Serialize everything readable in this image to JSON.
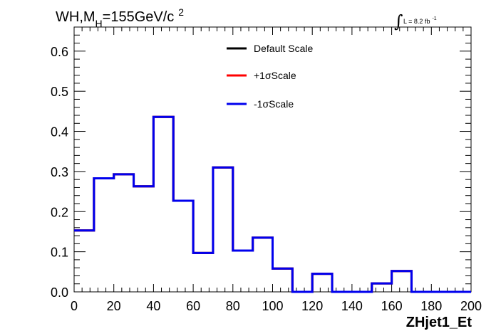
{
  "chart_data": {
    "type": "line",
    "title": {
      "main": "WH,M",
      "sub": "H",
      "rest": "=155GeV/c",
      "sup": "2"
    },
    "lumi_label": {
      "integral": "∫",
      "text": "L = 8.2 fb",
      "sup": "-1"
    },
    "xlabel": "ZHjet1_Et",
    "ylabel": "",
    "xlim": [
      0,
      200
    ],
    "ylim": [
      0,
      0.66
    ],
    "x_ticks": [
      "0",
      "20",
      "40",
      "60",
      "80",
      "100",
      "120",
      "140",
      "160",
      "180",
      "200"
    ],
    "y_ticks": [
      "0.0",
      "0.1",
      "0.2",
      "0.3",
      "0.4",
      "0.5",
      "0.6"
    ],
    "bin_edges": [
      0,
      10,
      20,
      30,
      40,
      50,
      60,
      70,
      80,
      90,
      100,
      110,
      120,
      130,
      140,
      150,
      160,
      170,
      180,
      190,
      200
    ],
    "series": [
      {
        "name": "Default Scale",
        "color": "#000000",
        "values": [
          0.153,
          0.283,
          0.293,
          0.263,
          0.436,
          0.227,
          0.097,
          0.31,
          0.103,
          0.135,
          0.058,
          0.0,
          0.045,
          0.0,
          0.0,
          0.021,
          0.052,
          0.0,
          0.0,
          0.0
        ]
      },
      {
        "name": "+1σScale",
        "color": "#ff0000",
        "values": [
          0.153,
          0.283,
          0.293,
          0.263,
          0.436,
          0.227,
          0.097,
          0.31,
          0.103,
          0.135,
          0.058,
          0.0,
          0.045,
          0.0,
          0.0,
          0.021,
          0.052,
          0.0,
          0.0,
          0.0
        ]
      },
      {
        "name": "-1σScale",
        "color": "#0000ee",
        "values": [
          0.153,
          0.283,
          0.293,
          0.263,
          0.436,
          0.227,
          0.097,
          0.31,
          0.103,
          0.135,
          0.058,
          0.0,
          0.045,
          0.0,
          0.0,
          0.021,
          0.052,
          0.0,
          0.0,
          0.0
        ]
      }
    ],
    "legend_placement": "top-center",
    "grid": false
  }
}
